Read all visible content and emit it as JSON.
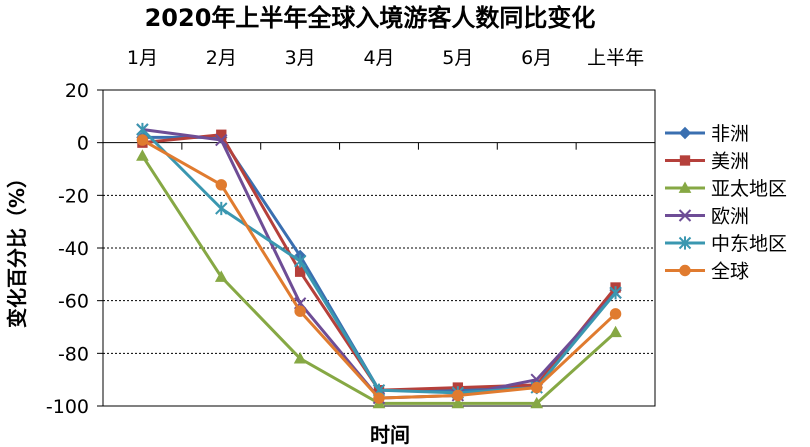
{
  "chart_data": {
    "type": "line",
    "title": "2020年上半年全球入境游客人数同比变化",
    "xlabel": "时间",
    "ylabel": "变化百分比（%）",
    "ylim": [
      -100,
      20
    ],
    "yticks": [
      20,
      0,
      -20,
      -40,
      -60,
      -80,
      -100
    ],
    "categories": [
      "1月",
      "2月",
      "3月",
      "4月",
      "5月",
      "6月",
      "上半年"
    ],
    "grid": true,
    "legend_position": "right",
    "series": [
      {
        "name": "非洲",
        "color": "#3a6fb0",
        "marker": "diamond",
        "values": [
          2,
          2,
          -43,
          -94,
          -94,
          -93,
          -56
        ]
      },
      {
        "name": "美洲",
        "color": "#b5403b",
        "marker": "square",
        "values": [
          0,
          3,
          -49,
          -94,
          -93,
          -92,
          -55
        ]
      },
      {
        "name": "亚太地区",
        "color": "#86a844",
        "marker": "triangle",
        "values": [
          -5,
          -51,
          -82,
          -99,
          -99,
          -99,
          -72
        ]
      },
      {
        "name": "欧洲",
        "color": "#6e4d96",
        "marker": "x",
        "values": [
          5,
          1,
          -61,
          -97,
          -96,
          -90,
          -57
        ]
      },
      {
        "name": "中东地区",
        "color": "#3a97b0",
        "marker": "star",
        "values": [
          5,
          -25,
          -45,
          -94,
          -95,
          -93,
          -57
        ]
      },
      {
        "name": "全球",
        "color": "#e07b2f",
        "marker": "circle",
        "values": [
          1,
          -16,
          -64,
          -97,
          -96,
          -93,
          -65
        ]
      }
    ]
  }
}
